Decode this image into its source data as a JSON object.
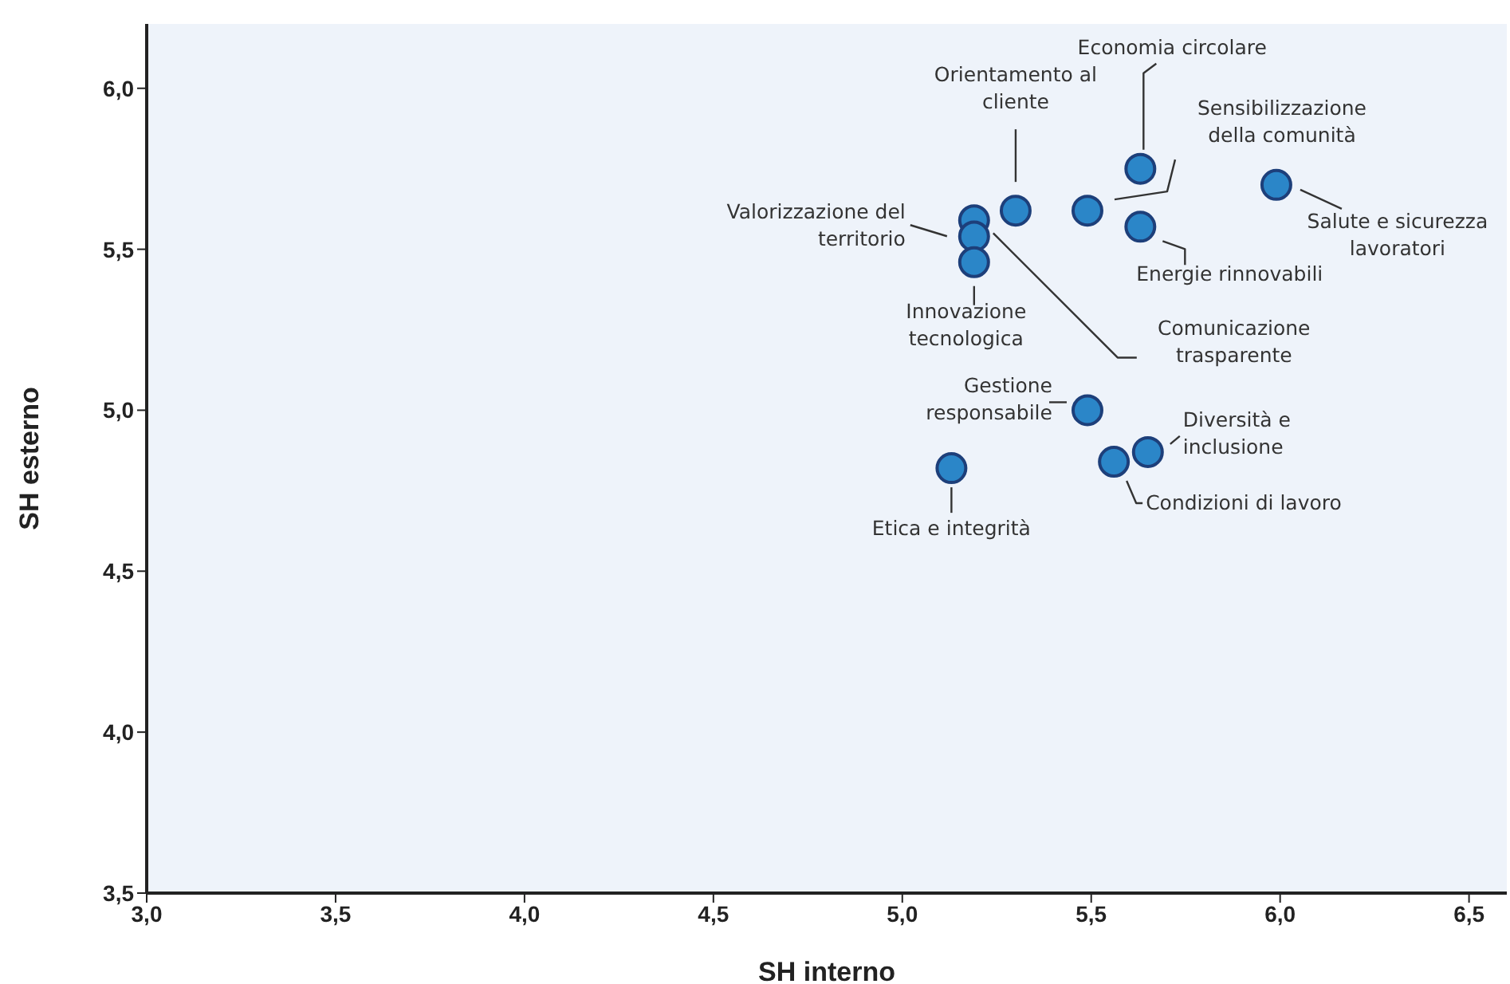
{
  "chart_data": {
    "type": "scatter",
    "xlabel": "SH interno",
    "ylabel": "SH esterno",
    "xlim": [
      3.0,
      6.6
    ],
    "ylim": [
      3.5,
      6.2
    ],
    "xticks": [
      {
        "value": 3.0,
        "label": "3,0"
      },
      {
        "value": 3.5,
        "label": "3,5"
      },
      {
        "value": 4.0,
        "label": "4,0"
      },
      {
        "value": 4.5,
        "label": "4,5"
      },
      {
        "value": 5.0,
        "label": "5,0"
      },
      {
        "value": 5.5,
        "label": "5,5"
      },
      {
        "value": 6.0,
        "label": "6,0"
      },
      {
        "value": 6.5,
        "label": "6,5"
      }
    ],
    "yticks": [
      {
        "value": 3.5,
        "label": "3,5"
      },
      {
        "value": 4.0,
        "label": "4,0"
      },
      {
        "value": 4.5,
        "label": "4,5"
      },
      {
        "value": 5.0,
        "label": "5,0"
      },
      {
        "value": 5.5,
        "label": "5,5"
      },
      {
        "value": 6.0,
        "label": "6,0"
      }
    ],
    "grid": false,
    "legend": false,
    "marker": "circle",
    "series": [
      {
        "name": "Economia circolare",
        "color": "#2b86c8",
        "x": [
          5.63
        ],
        "values": [
          5.75
        ]
      },
      {
        "name": "Orientamento al cliente",
        "color": "#2b86c8",
        "x": [
          5.3
        ],
        "values": [
          5.62
        ]
      },
      {
        "name": "Sensibilizzazione della comunità",
        "color": "#2b86c8",
        "x": [
          5.49
        ],
        "values": [
          5.62
        ]
      },
      {
        "name": "Salute e sicurezza lavoratori",
        "color": "#2b86c8",
        "x": [
          5.99
        ],
        "values": [
          5.7
        ]
      },
      {
        "name": "Valorizzazione del territorio",
        "color": "#2b86c8",
        "x": [
          5.19
        ],
        "values": [
          5.59
        ]
      },
      {
        "name": "Comunicazione trasparente",
        "color": "#2b86c8",
        "x": [
          5.19
        ],
        "values": [
          5.54
        ]
      },
      {
        "name": "Innovazione tecnologica",
        "color": "#2b86c8",
        "x": [
          5.19
        ],
        "values": [
          5.46
        ]
      },
      {
        "name": "Energie rinnovabili",
        "color": "#2b86c8",
        "x": [
          5.63
        ],
        "values": [
          5.57
        ]
      },
      {
        "name": "Gestione responsabile",
        "color": "#2b86c8",
        "x": [
          5.49
        ],
        "values": [
          5.0
        ]
      },
      {
        "name": "Diversità e inclusione",
        "color": "#2b86c8",
        "x": [
          5.65
        ],
        "values": [
          4.87
        ]
      },
      {
        "name": "Condizioni di lavoro",
        "color": "#2b86c8",
        "x": [
          5.56
        ],
        "values": [
          4.84
        ]
      },
      {
        "name": "Etica e integrità",
        "color": "#2b86c8",
        "x": [
          5.13
        ],
        "values": [
          4.82
        ]
      }
    ]
  }
}
